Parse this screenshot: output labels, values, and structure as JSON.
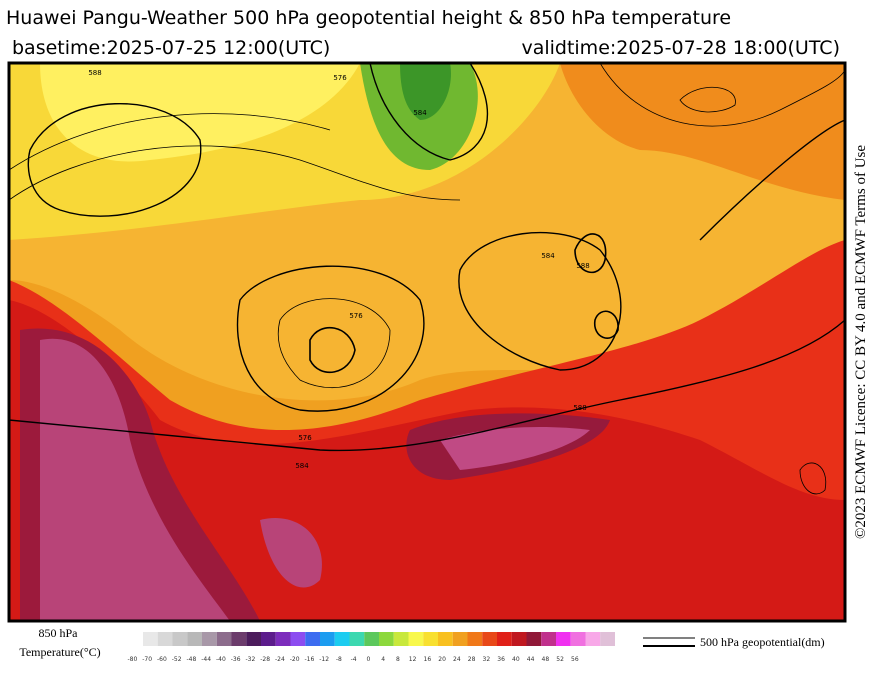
{
  "header": {
    "title": "Huawei Pangu-Weather 500 hPa geopotential height & 850 hPa temperature",
    "basetime": "basetime:2025-07-25 12:00(UTC)",
    "validtime": "validtime:2025-07-28 18:00(UTC)"
  },
  "credit": "©2023 ECMWF Licence: CC BY 4.0 and ECMWF Terms of Use",
  "map": {
    "contour_labels": [
      "588",
      "576",
      "584",
      "584",
      "588",
      "576",
      "576",
      "584",
      "588"
    ]
  },
  "legend": {
    "temperature_title": [
      "850 hPa",
      "Temperature(°C)"
    ],
    "temperature_ticks": [
      -80,
      -70,
      -60,
      -52,
      -48,
      -44,
      -40,
      -36,
      -32,
      -28,
      -24,
      -20,
      -16,
      -12,
      -8,
      -4,
      0,
      4,
      8,
      12,
      16,
      20,
      24,
      28,
      32,
      36,
      40,
      44,
      48,
      52,
      56
    ],
    "contour_label": "500 hPa geopotential(dm)"
  }
}
